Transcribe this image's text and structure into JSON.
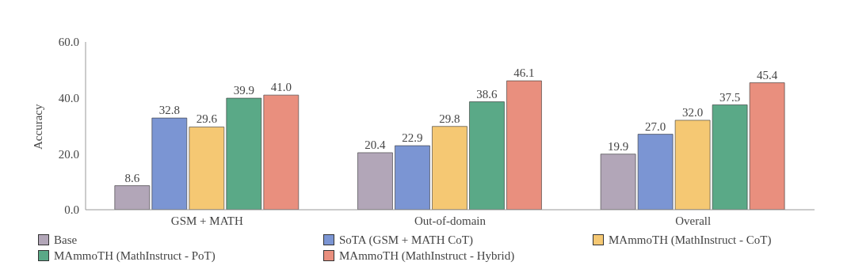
{
  "chart_data": {
    "type": "bar",
    "ylabel": "Accuracy",
    "categories": [
      "GSM + MATH",
      "Out-of-domain",
      "Overall"
    ],
    "series": [
      {
        "name": "Base",
        "color": "#b2a6b8",
        "values": [
          8.6,
          20.4,
          19.9
        ],
        "value_labels": [
          "8.6",
          "20.4",
          "19.9"
        ]
      },
      {
        "name": "SoTA (GSM + MATH CoT)",
        "color": "#7b95d3",
        "values": [
          32.8,
          22.9,
          27
        ],
        "value_labels": [
          "32.8",
          "22.9",
          "27.0"
        ]
      },
      {
        "name": "MAmmoTH (MathInstruct - CoT)",
        "color": "#f5c873",
        "values": [
          29.6,
          29.8,
          32
        ],
        "value_labels": [
          "29.6",
          "29.8",
          "32.0"
        ]
      },
      {
        "name": "MAmmoTH (MathInstruct - PoT)",
        "color": "#5aa987",
        "values": [
          39.9,
          38.6,
          37.5
        ],
        "value_labels": [
          "39.9",
          "38.6",
          "37.5"
        ]
      },
      {
        "name": "MAmmoTH (MathInstruct - Hybrid)",
        "color": "#e98f7e",
        "values": [
          41,
          46.1,
          45.4
        ],
        "value_labels": [
          "41.0",
          "46.1",
          "45.4"
        ]
      }
    ],
    "ylim": [
      0,
      60
    ],
    "yticks": [
      {
        "value": 0,
        "label": "0.0"
      },
      {
        "value": 20,
        "label": "20.0"
      },
      {
        "value": 40,
        "label": "40.0"
      },
      {
        "value": 60,
        "label": "60.0"
      }
    ],
    "grid": false,
    "legend": "bottom"
  }
}
